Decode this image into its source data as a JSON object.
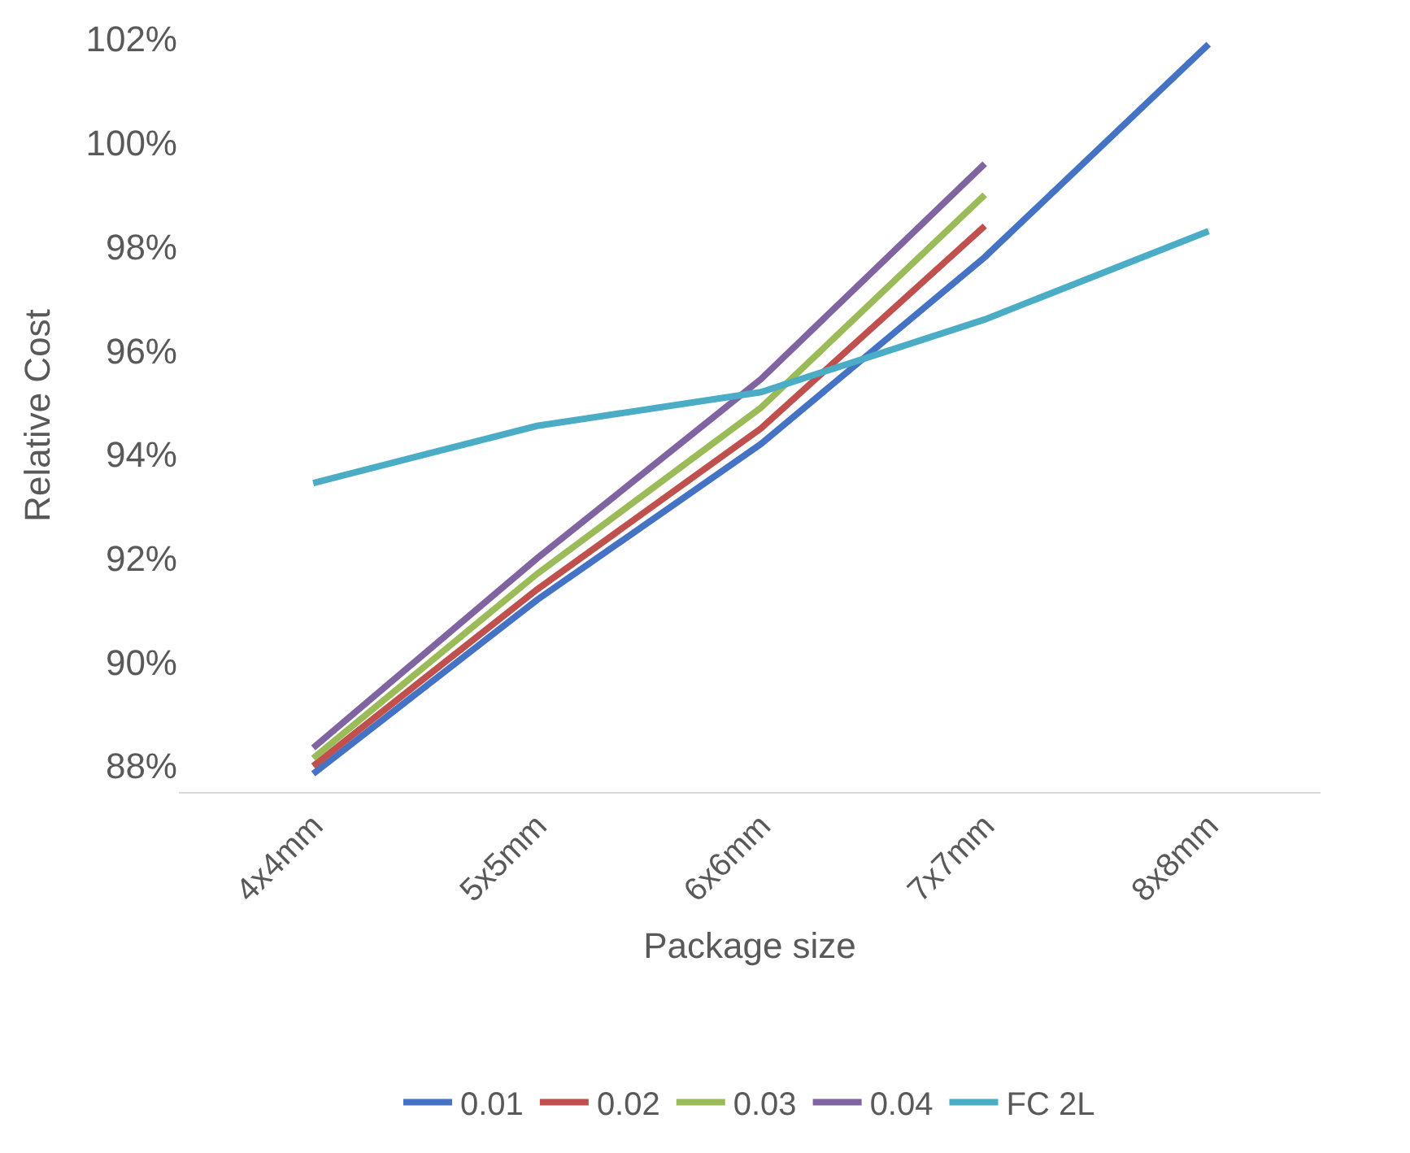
{
  "chart_data": {
    "type": "line",
    "xlabel": "Package size",
    "ylabel": "Relative Cost",
    "categories": [
      "4x4mm",
      "5x5mm",
      "6x6mm",
      "7x7mm",
      "8x8mm"
    ],
    "series": [
      {
        "name": "0.01",
        "color": "#4472c4",
        "values": [
          87.85,
          91.2,
          94.2,
          97.8,
          101.9
        ]
      },
      {
        "name": "0.02",
        "color": "#c0504d",
        "values": [
          88.0,
          91.4,
          94.5,
          98.4,
          null
        ]
      },
      {
        "name": "0.03",
        "color": "#9bbb59",
        "values": [
          88.15,
          91.7,
          94.9,
          99.0,
          null
        ]
      },
      {
        "name": "0.04",
        "color": "#8064a2",
        "values": [
          88.35,
          92.0,
          95.45,
          99.6,
          null
        ]
      },
      {
        "name": "FC 2L",
        "color": "#4bacc6",
        "values": [
          93.45,
          94.55,
          95.2,
          96.6,
          98.3
        ]
      }
    ],
    "ylim": [
      87.5,
      102
    ],
    "yticks": [
      {
        "value": 88,
        "label": "88%"
      },
      {
        "value": 90,
        "label": "90%"
      },
      {
        "value": 92,
        "label": "92%"
      },
      {
        "value": 94,
        "label": "94%"
      },
      {
        "value": 96,
        "label": "96%"
      },
      {
        "value": 98,
        "label": "98%"
      },
      {
        "value": 100,
        "label": "100%"
      },
      {
        "value": 102,
        "label": "102%"
      }
    ],
    "legend": "bottom",
    "marker": "none",
    "line_style": "solid"
  }
}
